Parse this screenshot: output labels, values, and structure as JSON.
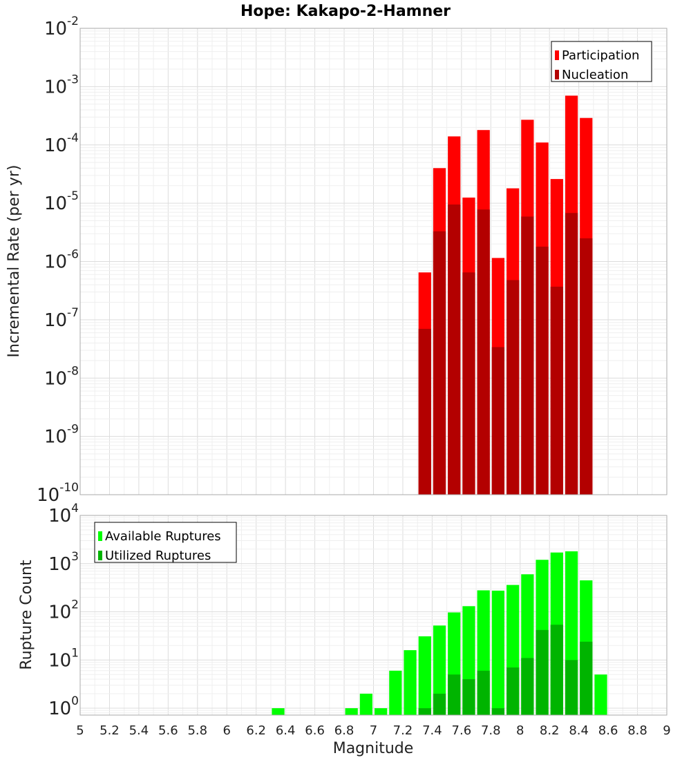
{
  "title": "Hope: Kakapo-2-Hamner",
  "colors": {
    "participation": "#ff0000",
    "nucleation": "#b30000",
    "available": "#00ff00",
    "utilized": "#00b400",
    "grid_major": "#dcdcdc",
    "grid_minor": "#efefef"
  },
  "chart_data": [
    {
      "type": "bar",
      "ylabel": "Incremental Rate (per yr)",
      "xlabel": "",
      "xlim": [
        5,
        9
      ],
      "ylim": [
        1e-10,
        0.01
      ],
      "yscale": "log",
      "grid": true,
      "legend_placement": "top-right",
      "bar_width": 0.1,
      "x": [
        7.35,
        7.45,
        7.55,
        7.65,
        7.75,
        7.85,
        7.95,
        8.05,
        8.15,
        8.25,
        8.35,
        8.45
      ],
      "series": [
        {
          "name": "Participation",
          "color": "#ff0000",
          "values": [
            6.5e-07,
            4e-05,
            0.00014,
            1.25e-05,
            0.00018,
            1.15e-06,
            1.8e-05,
            0.00027,
            0.00011,
            2.6e-05,
            0.0007,
            0.00029
          ]
        },
        {
          "name": "Nucleation",
          "color": "#b30000",
          "values": [
            7e-08,
            3.3e-06,
            9.5e-06,
            6.5e-07,
            7.8e-06,
            3.4e-08,
            4.8e-07,
            5.9e-06,
            1.8e-06,
            3.7e-07,
            6.8e-06,
            2.5e-06
          ]
        }
      ]
    },
    {
      "type": "bar",
      "ylabel": "Rupture Count",
      "xlabel": "Magnitude",
      "xlim": [
        5,
        9
      ],
      "ylim": [
        0.72,
        10000
      ],
      "yscale": "log",
      "grid": true,
      "legend_placement": "top-left",
      "bar_width": 0.1,
      "xticks": [
        "5",
        "5.2",
        "5.4",
        "5.6",
        "5.8",
        "6",
        "6.2",
        "6.4",
        "6.6",
        "6.8",
        "7",
        "7.2",
        "7.4",
        "7.6",
        "7.8",
        "8",
        "8.2",
        "8.4",
        "8.6",
        "8.8",
        "9"
      ],
      "series": [
        {
          "name": "Available Ruptures",
          "color": "#00ff00",
          "x": [
            6.35,
            6.85,
            6.95,
            7.05,
            7.15,
            7.25,
            7.35,
            7.45,
            7.55,
            7.65,
            7.75,
            7.85,
            7.95,
            8.05,
            8.15,
            8.25,
            8.35,
            8.45,
            8.55
          ],
          "values": [
            1,
            1,
            2,
            1,
            6,
            16,
            31,
            52,
            97,
            131,
            279,
            275,
            361,
            600,
            1200,
            1700,
            1800,
            450,
            5
          ]
        },
        {
          "name": "Utilized Ruptures",
          "color": "#00b400",
          "x": [
            7.35,
            7.45,
            7.55,
            7.65,
            7.75,
            7.85,
            7.95,
            8.05,
            8.15,
            8.25,
            8.35,
            8.45
          ],
          "values": [
            1,
            2,
            5,
            4,
            6,
            1,
            7,
            11,
            42,
            54,
            10,
            24
          ]
        }
      ]
    }
  ]
}
